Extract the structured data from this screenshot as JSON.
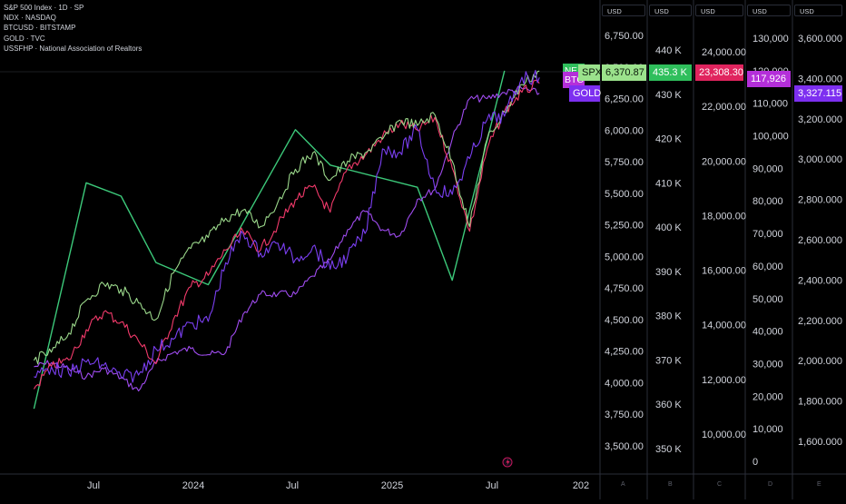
{
  "legend": [
    "S&P 500 Index · 1D · SP",
    "NDX · NASDAQ",
    "BTCUSD · BITSTAMP",
    "GOLD · TVC",
    "USSFHP · National Association of Realtors"
  ],
  "axis_unit": "USD",
  "axis_foot": [
    "A",
    "B",
    "C",
    "D",
    "E"
  ],
  "tags": {
    "spx": "SPX",
    "spx_value": "6,370.87",
    "btc": "BTC",
    "gold": "GOLD",
    "b_value": "435.3 K",
    "c_value": "23,308.30",
    "d_value": "117,926",
    "e_value": "3,327.115",
    "hidden_tag_fragment": "NE"
  },
  "colors": {
    "background": "#000000",
    "spx": "#f23a6b",
    "ndx": "#9bd88b",
    "btc": "#7b3ff2",
    "gold": "#a04cf0",
    "ussfhp": "#3cc97a",
    "tag_spx": "#9be28c",
    "tag_ussfhp": "#2fbf5c",
    "tag_ndx": "#e0245e",
    "tag_btc": "#b42fd9",
    "tag_gold": "#7d2ff0"
  },
  "chart_data": {
    "type": "line",
    "x_axis_labels": [
      "Jul",
      "2024",
      "Jul",
      "2025",
      "Jul",
      "202"
    ],
    "scales": [
      {
        "id": "A",
        "ticks": [
          "3,500.00",
          "3,750.00",
          "4,000.00",
          "4,250.00",
          "4,500.00",
          "4,750.00",
          "5,000.00",
          "5,250.00",
          "5,500.00",
          "5,750.00",
          "6,000.00",
          "6,250.00",
          "6,500.00",
          "6,750.00"
        ]
      },
      {
        "id": "B",
        "ticks": [
          "350 K",
          "360 K",
          "370 K",
          "380 K",
          "390 K",
          "400 K",
          "410 K",
          "420 K",
          "430 K",
          "440 K"
        ]
      },
      {
        "id": "C",
        "ticks": [
          "10,000.00",
          "12,000.00",
          "14,000.00",
          "16,000.00",
          "18,000.00",
          "20,000.00",
          "22,000.00",
          "24,000.00"
        ]
      },
      {
        "id": "D",
        "ticks": [
          "0",
          "10,000",
          "20,000",
          "30,000",
          "40,000",
          "50,000",
          "60,000",
          "70,000",
          "80,000",
          "90,000",
          "100,000",
          "110,000",
          "120,000",
          "130,000"
        ]
      },
      {
        "id": "E",
        "ticks": [
          "1,600.000",
          "1,800.000",
          "2,000.000",
          "2,200.000",
          "2,400.000",
          "2,600.000",
          "2,800.000",
          "3,000.000",
          "3,200.000",
          "3,400.000",
          "3,600.000"
        ]
      }
    ],
    "series": [
      {
        "name": "S&P 500 Index",
        "scale": "A",
        "last_value": 6370.87,
        "dates": [
          "2023-03",
          "2023-04",
          "2023-05",
          "2023-06",
          "2023-07",
          "2023-08",
          "2023-09",
          "2023-10",
          "2023-11",
          "2023-12",
          "2024-01",
          "2024-02",
          "2024-03",
          "2024-04",
          "2024-05",
          "2024-06",
          "2024-07",
          "2024-08",
          "2024-09",
          "2024-10",
          "2024-11",
          "2024-12",
          "2025-01",
          "2025-02",
          "2025-03",
          "2025-04",
          "2025-05",
          "2025-06",
          "2025-07",
          "2025-08"
        ],
        "values": [
          3950,
          4130,
          4180,
          4420,
          4560,
          4480,
          4330,
          4150,
          4500,
          4760,
          4850,
          5050,
          5200,
          5050,
          5250,
          5450,
          5550,
          5350,
          5700,
          5800,
          5950,
          6050,
          6000,
          6100,
          5700,
          5200,
          5850,
          6150,
          6300,
          6370
        ]
      },
      {
        "name": "NDX",
        "scale": "C",
        "last_value": 23308.3,
        "dates": [
          "2023-03",
          "2023-04",
          "2023-05",
          "2023-06",
          "2023-07",
          "2023-08",
          "2023-09",
          "2023-10",
          "2023-11",
          "2023-12",
          "2024-01",
          "2024-02",
          "2024-03",
          "2024-04",
          "2024-05",
          "2024-06",
          "2024-07",
          "2024-08",
          "2024-09",
          "2024-10",
          "2024-11",
          "2024-12",
          "2025-01",
          "2025-02",
          "2025-03",
          "2025-04",
          "2025-05",
          "2025-06",
          "2025-07",
          "2025-08"
        ],
        "values": [
          12700,
          13000,
          13700,
          14900,
          15500,
          15300,
          14800,
          14200,
          15900,
          16800,
          17200,
          17900,
          18200,
          17600,
          18500,
          19700,
          20300,
          19300,
          20000,
          20300,
          20800,
          21500,
          21300,
          21700,
          20000,
          17600,
          20800,
          21800,
          22800,
          23300
        ]
      },
      {
        "name": "BTCUSD",
        "scale": "D",
        "last_value": 117926,
        "dates": [
          "2023-03",
          "2023-04",
          "2023-05",
          "2023-06",
          "2023-07",
          "2023-08",
          "2023-09",
          "2023-10",
          "2023-11",
          "2023-12",
          "2024-01",
          "2024-02",
          "2024-03",
          "2024-04",
          "2024-05",
          "2024-06",
          "2024-07",
          "2024-08",
          "2024-09",
          "2024-10",
          "2024-11",
          "2024-12",
          "2025-01",
          "2025-02",
          "2025-03",
          "2025-04",
          "2025-05",
          "2025-06",
          "2025-07",
          "2025-08"
        ],
        "values": [
          26000,
          29000,
          27000,
          30500,
          29500,
          26000,
          26500,
          34500,
          37500,
          42500,
          43000,
          61000,
          70000,
          64000,
          67000,
          62000,
          66000,
          59000,
          63000,
          70000,
          96000,
          95000,
          102000,
          84000,
          82000,
          93000,
          105000,
          106000,
          118000,
          117926
        ]
      },
      {
        "name": "GOLD",
        "scale": "E",
        "last_value": 3327.115,
        "dates": [
          "2023-03",
          "2023-04",
          "2023-05",
          "2023-06",
          "2023-07",
          "2023-08",
          "2023-09",
          "2023-10",
          "2023-11",
          "2023-12",
          "2024-01",
          "2024-02",
          "2024-03",
          "2024-04",
          "2024-05",
          "2024-06",
          "2024-07",
          "2024-08",
          "2024-09",
          "2024-10",
          "2024-11",
          "2024-12",
          "2025-01",
          "2025-02",
          "2025-03",
          "2025-04",
          "2025-05",
          "2025-06",
          "2025-07",
          "2025-08"
        ],
        "values": [
          1970,
          1990,
          1960,
          1920,
          1960,
          1915,
          1850,
          1990,
          2040,
          2060,
          2030,
          2040,
          2230,
          2330,
          2330,
          2330,
          2420,
          2500,
          2650,
          2740,
          2650,
          2620,
          2800,
          2850,
          3100,
          3300,
          3300,
          3330,
          3350,
          3327
        ]
      },
      {
        "name": "USSFHP",
        "scale": "B",
        "last_value": 435.3,
        "dates": [
          "2023-03",
          "2023-06",
          "2023-08",
          "2023-10",
          "2024-01",
          "2024-06",
          "2024-08",
          "2025-01",
          "2025-03",
          "2025-06"
        ],
        "values": [
          359,
          410,
          407,
          392,
          387,
          422,
          414,
          409,
          388,
          435.3
        ]
      }
    ]
  }
}
